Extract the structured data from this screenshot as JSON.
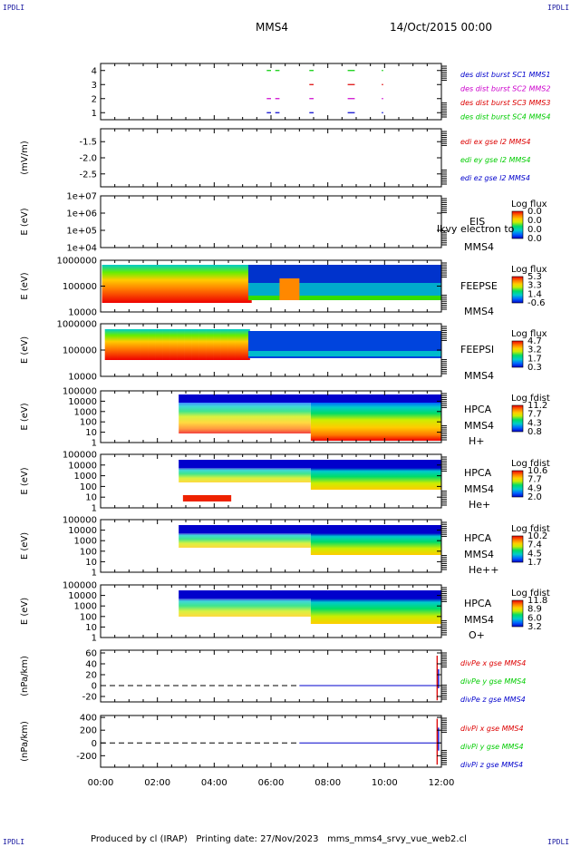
{
  "header": {
    "corner_left_top": "IPDLI",
    "corner_right_top": "IPDLI",
    "corner_left_bottom": "IPDLI",
    "corner_right_bottom": "IPDLI",
    "spacecraft": "MMS4",
    "datetime": "14/Oct/2015 00:00"
  },
  "footer": {
    "produced_by": "Produced by cl (IRAP)",
    "printing_date": "Printing date: 27/Nov/2023",
    "file": "mms_mms4_srvy_vue_web2.cl"
  },
  "colors": {
    "palette": [
      "#0000cc",
      "#0066ff",
      "#00cccc",
      "#00dd66",
      "#66ee00",
      "#ccee00",
      "#ffcc00",
      "#ff7700",
      "#ee0000"
    ],
    "mms1": "#0000cc",
    "mms2": "#cc00cc",
    "mms3": "#dd0000",
    "mms4": "#00cc00",
    "x": "#dd0000",
    "y": "#00cc00",
    "z": "#0000cc"
  },
  "chart_data": [
    {
      "type": "line",
      "panel": "burst",
      "ylim": [
        0.5,
        4.5
      ],
      "yticks": [
        "1",
        "2",
        "3",
        "4"
      ],
      "legend": [
        "des dist burst SC1 MMS1",
        "des dist burst SC2 MMS2",
        "des dist burst SC3 MMS3",
        "des dist burst SC4 MMS4"
      ],
      "series": [
        {
          "level": 4,
          "color": "mms4",
          "intervals": [
            [
              5.85,
              6.0
            ],
            [
              6.15,
              6.3
            ],
            [
              7.35,
              7.5
            ],
            [
              8.7,
              8.95
            ],
            [
              9.9,
              9.95
            ]
          ]
        },
        {
          "level": 3,
          "color": "mms3",
          "intervals": [
            [
              7.35,
              7.5
            ],
            [
              8.7,
              8.95
            ],
            [
              9.9,
              9.95
            ]
          ]
        },
        {
          "level": 2,
          "color": "mms2",
          "intervals": [
            [
              5.85,
              6.0
            ],
            [
              6.15,
              6.3
            ],
            [
              7.35,
              7.5
            ],
            [
              8.7,
              8.95
            ],
            [
              9.9,
              9.95
            ]
          ]
        },
        {
          "level": 1,
          "color": "mms1",
          "intervals": [
            [
              5.85,
              6.0
            ],
            [
              6.15,
              6.3
            ],
            [
              7.35,
              7.5
            ],
            [
              8.7,
              8.95
            ],
            [
              9.9,
              9.95
            ]
          ]
        }
      ]
    },
    {
      "type": "line",
      "panel": "edi",
      "ylabel": "(mV/m)",
      "ylim": [
        -2.9,
        -1.1
      ],
      "yticks": [
        "-1.5",
        "-2.0",
        "-2.5"
      ],
      "legend": [
        "edi ex gse l2 MMS4",
        "edi ey gse l2 MMS4",
        "edi ez gse l2 MMS4"
      ]
    },
    {
      "type": "heatmap",
      "panel": "eis",
      "ylabel": "E (eV)",
      "yticks": [
        "1e+07",
        "1e+06",
        "1e+05",
        "1e+04"
      ],
      "labels": [
        "EIS",
        "MMS4"
      ],
      "overlay_text": "lkvy electron to",
      "colorbar_title": "Log flux",
      "colorbar_ticks": [
        "0.0",
        "0.0",
        "0.0",
        "0.0"
      ]
    },
    {
      "type": "heatmap",
      "panel": "feepse",
      "ylabel": "E (eV)",
      "yticks": [
        "1000000",
        "100000",
        "10000"
      ],
      "labels": [
        "FEEPSE",
        "MMS4"
      ],
      "colorbar_title": "Log flux",
      "colorbar_ticks": [
        "5.3",
        "3.3",
        "1.4",
        "-0.6"
      ]
    },
    {
      "type": "heatmap",
      "panel": "feepsi",
      "ylabel": "E (eV)",
      "yticks": [
        "1000000",
        "100000",
        "10000"
      ],
      "labels": [
        "FEEPSI",
        "MMS4"
      ],
      "colorbar_title": "Log flux",
      "colorbar_ticks": [
        "4.7",
        "3.2",
        "1.7",
        "0.3"
      ]
    },
    {
      "type": "heatmap",
      "panel": "hpca_h",
      "ylabel": "E (eV)",
      "yticks": [
        "100000",
        "10000",
        "1000",
        "100",
        "10",
        "1"
      ],
      "labels": [
        "HPCA",
        "MMS4",
        "H+"
      ],
      "colorbar_title": "Log fdist",
      "colorbar_ticks": [
        "11.2",
        "7.7",
        "4.3",
        "0.8"
      ]
    },
    {
      "type": "heatmap",
      "panel": "hpca_he",
      "ylabel": "E (eV)",
      "yticks": [
        "100000",
        "10000",
        "1000",
        "100",
        "10",
        "1"
      ],
      "labels": [
        "HPCA",
        "MMS4",
        "He+"
      ],
      "colorbar_title": "Log fdist",
      "colorbar_ticks": [
        "10.6",
        "7.7",
        "4.9",
        "2.0"
      ]
    },
    {
      "type": "heatmap",
      "panel": "hpca_hepp",
      "ylabel": "E (eV)",
      "yticks": [
        "100000",
        "10000",
        "1000",
        "100",
        "10",
        "1"
      ],
      "labels": [
        "HPCA",
        "MMS4",
        "He++"
      ],
      "colorbar_title": "Log fdist",
      "colorbar_ticks": [
        "10.2",
        "7.4",
        "4.5",
        "1.7"
      ]
    },
    {
      "type": "heatmap",
      "panel": "hpca_o",
      "ylabel": "E (eV)",
      "yticks": [
        "100000",
        "10000",
        "1000",
        "100",
        "10",
        "1"
      ],
      "labels": [
        "HPCA",
        "MMS4",
        "O+"
      ],
      "colorbar_title": "Log fdist",
      "colorbar_ticks": [
        "11.8",
        "8.9",
        "6.0",
        "3.2"
      ]
    },
    {
      "type": "line",
      "panel": "divpe",
      "ylabel": "(nPa/km)",
      "ylim": [
        -30,
        65
      ],
      "yticks": [
        "60",
        "40",
        "20",
        "0",
        "-20"
      ],
      "legend": [
        "divPe x gse MMS4",
        "divPe y gse MMS4",
        "divPe z gse MMS4"
      ],
      "dashed_zero_until": 7.0,
      "solid_zero_from": 7.0,
      "spikes": [
        {
          "x": 11.85,
          "from": -27,
          "to": 55,
          "color": "x"
        },
        {
          "x": 11.9,
          "from": -5,
          "to": 30,
          "color": "z"
        }
      ]
    },
    {
      "type": "line",
      "panel": "divpi",
      "ylabel": "(nPa/km)",
      "ylim": [
        -380,
        430
      ],
      "yticks": [
        "400",
        "200",
        "0",
        "-200"
      ],
      "legend": [
        "divPi x gse MMS4",
        "divPi y gse MMS4",
        "divPi z gse MMS4"
      ],
      "dashed_zero_until": 7.0,
      "solid_zero_from": 7.0,
      "spikes": [
        {
          "x": 11.85,
          "from": -340,
          "to": 380,
          "color": "x"
        },
        {
          "x": 11.9,
          "from": -120,
          "to": 240,
          "color": "z"
        }
      ]
    }
  ],
  "x_axis": {
    "range": [
      0,
      12
    ],
    "ticks": [
      "00:00",
      "02:00",
      "04:00",
      "06:00",
      "08:00",
      "10:00",
      "12:00"
    ]
  }
}
